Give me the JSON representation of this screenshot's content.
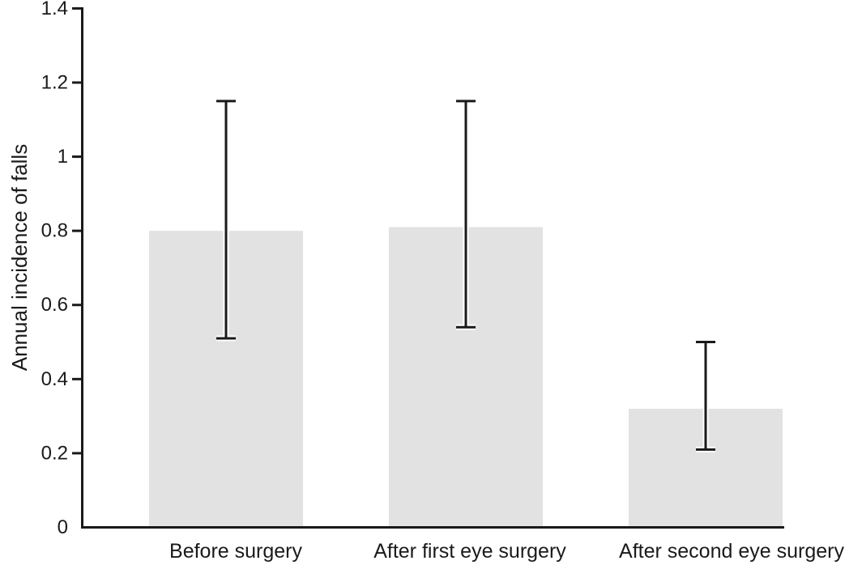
{
  "chart_data": {
    "type": "bar",
    "title": "",
    "categories": [
      "Before surgery",
      "After first eye surgery",
      "After second eye surgery"
    ],
    "values": [
      0.8,
      0.81,
      0.32
    ],
    "error_low": [
      0.51,
      0.54,
      0.21
    ],
    "error_high": [
      1.15,
      1.15,
      0.5
    ],
    "xlabel": "",
    "ylabel": "Annual incidence of falls",
    "ylim": [
      0,
      1.4
    ],
    "yticks": [
      "0",
      "0.2",
      "0.4",
      "0.6",
      "0.8",
      "1",
      "1.2",
      "1.4"
    ],
    "grid": false,
    "legend": false,
    "colors": {
      "bar_fill": "#e2e2e2",
      "axis": "#1a1a1a",
      "error_bar": "#1a1a1a",
      "text": "#1a1a1a",
      "background": "#ffffff",
      "error_halo": "#ffffff"
    }
  }
}
